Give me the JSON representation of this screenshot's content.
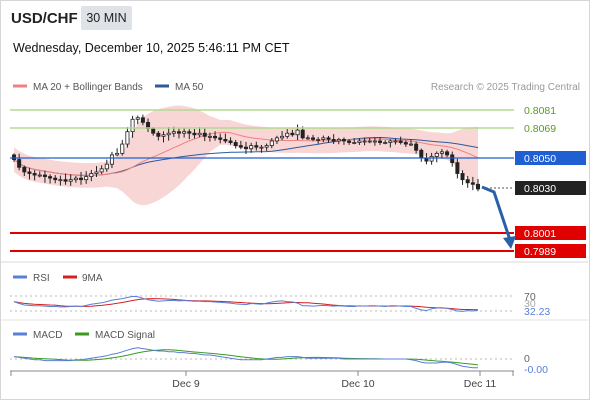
{
  "header": {
    "pair": "USD/CHF",
    "timeframe": "30 MIN",
    "datetime": "Wednesday, December 10, 2025 5:46:11 PM CET"
  },
  "legend": {
    "ma20": "MA 20 + Bollinger Bands",
    "ma50": "MA 50",
    "credit": "Research © 2025 Trading Central"
  },
  "colors": {
    "ma20": "#f08080",
    "ma50": "#2e5a9a",
    "band_fill": "#f9d6d6",
    "resistance": "#b5d98f",
    "pivot": "#1f5fd1",
    "support": "#e00000",
    "current": "#222222",
    "candle": "#222222",
    "rsi": "#5a7fd6",
    "rsi_ma": "#d32020",
    "macd": "#5a7fd6",
    "macd_signal": "#3a9a20"
  },
  "levels": {
    "r2": "0.8081",
    "r1": "0.8069",
    "pivot": "0.8050",
    "current": "0.8030",
    "s1": "0.8001",
    "s2": "0.7989"
  },
  "rsi": {
    "label": "RSI",
    "ma_label": "9MA",
    "level_70": "70",
    "level_30": "30",
    "value": "32.23"
  },
  "macd": {
    "label": "MACD",
    "signal_label": "MACD Signal",
    "zero": "0",
    "value": "-0.00"
  },
  "x_axis": {
    "ticks": [
      "Dec 9",
      "Dec 10",
      "Dec 11"
    ]
  },
  "chart_data": {
    "type": "candlestick",
    "instrument": "USD/CHF",
    "interval": "30 MIN",
    "ylim": [
      0.798,
      0.809
    ],
    "price_levels": [
      0.8081,
      0.8069,
      0.805,
      0.803,
      0.8001,
      0.7989
    ],
    "forecast_target": 0.8001,
    "close": [
      0.8049,
      0.8044,
      0.8041,
      0.804,
      0.8039,
      0.8039,
      0.8038,
      0.8037,
      0.8036,
      0.8036,
      0.8035,
      0.8036,
      0.8037,
      0.8036,
      0.8038,
      0.804,
      0.8041,
      0.8043,
      0.8046,
      0.8052,
      0.8053,
      0.8059,
      0.8067,
      0.8075,
      0.8076,
      0.8073,
      0.8069,
      0.8066,
      0.8064,
      0.8065,
      0.8066,
      0.8067,
      0.8066,
      0.8067,
      0.8066,
      0.8065,
      0.8066,
      0.8064,
      0.8064,
      0.8063,
      0.8062,
      0.8061,
      0.806,
      0.8058,
      0.8057,
      0.8056,
      0.8058,
      0.8057,
      0.8057,
      0.8058,
      0.8061,
      0.8063,
      0.8064,
      0.8066,
      0.8065,
      0.8068,
      0.8063,
      0.8063,
      0.8062,
      0.8062,
      0.8063,
      0.8062,
      0.8061,
      0.8062,
      0.8061,
      0.806,
      0.806,
      0.8061,
      0.8061,
      0.8061,
      0.8061,
      0.806,
      0.806,
      0.8061,
      0.8061,
      0.806,
      0.8059,
      0.8059,
      0.8055,
      0.805,
      0.8048,
      0.8051,
      0.8053,
      0.8054,
      0.8052,
      0.8047,
      0.804,
      0.8036,
      0.8034,
      0.8033,
      0.803
    ],
    "rsi": [
      55,
      50,
      46,
      45,
      44,
      44,
      43,
      42,
      42,
      41,
      41,
      42,
      43,
      42,
      45,
      48,
      50,
      52,
      55,
      59,
      61,
      63,
      66,
      69,
      68,
      64,
      60,
      58,
      56,
      57,
      58,
      58,
      57,
      58,
      57,
      56,
      56,
      55,
      55,
      54,
      53,
      52,
      51,
      49,
      48,
      47,
      50,
      49,
      48,
      51,
      54,
      56,
      57,
      55,
      54,
      51,
      44,
      44,
      43,
      44,
      45,
      44,
      43,
      44,
      43,
      42,
      42,
      44,
      43,
      44,
      44,
      43,
      42,
      44,
      44,
      43,
      42,
      42,
      37,
      33,
      31,
      36,
      38,
      39,
      37,
      34,
      30,
      29,
      31,
      30,
      32.23
    ],
    "macd": [
      0.0003,
      0.0002,
      0.0001,
      0.0,
      -0.0001,
      -0.0001,
      -0.0002,
      -0.0002,
      -0.0002,
      -0.0002,
      -0.0002,
      -0.0002,
      -0.0001,
      -0.0001,
      0.0,
      0.0001,
      0.0002,
      0.0003,
      0.0004,
      0.0006,
      0.0007,
      0.0009,
      0.0011,
      0.0013,
      0.0014,
      0.0013,
      0.0012,
      0.0011,
      0.001,
      0.001,
      0.0009,
      0.0009,
      0.0008,
      0.0008,
      0.0007,
      0.0007,
      0.0006,
      0.0005,
      0.0005,
      0.0004,
      0.0003,
      0.0002,
      0.0001,
      0.0,
      -0.0001,
      -0.0001,
      -0.0001,
      -0.0001,
      -0.0001,
      0.0,
      0.0001,
      0.0002,
      0.0002,
      0.0003,
      0.0003,
      0.0003,
      0.0002,
      0.0001,
      0.0001,
      0.0001,
      0.0001,
      0.0001,
      0.0001,
      0.0001,
      0.0,
      0.0,
      0.0,
      0.0,
      0.0,
      0.0,
      0.0,
      0.0,
      0.0,
      0.0,
      0.0,
      0.0,
      0.0,
      -0.0001,
      -0.0002,
      -0.0004,
      -0.0005,
      -0.0005,
      -0.0005,
      -0.0004,
      -0.0004,
      -0.0005,
      -0.0007,
      -0.0009,
      -0.001,
      -0.0011,
      -0.0011
    ]
  }
}
